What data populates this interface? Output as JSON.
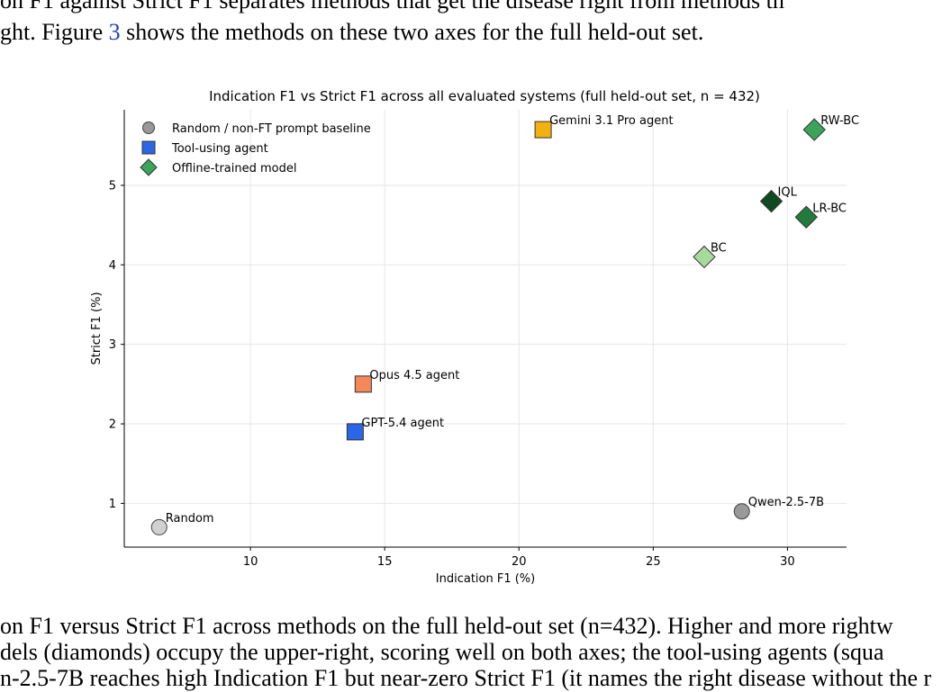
{
  "text_top": {
    "line1": "on F1 against Strict F1 separates methods that get the disease right from methods th",
    "line2_pre": "ght. Figure ",
    "line2_ref": "3",
    "line2_post": " shows the methods on these two axes for the full held-out set."
  },
  "caption": {
    "line1": "on F1 versus Strict F1 across methods on the full held-out set (n=432). Higher and more rightw",
    "line2": "dels (diamonds) occupy the upper-right, scoring well on both axes; the tool-using agents (squa",
    "line3": "n-2.5-7B reaches high Indication F1 but near-zero Strict F1 (it names the right disease without the r"
  },
  "chart_data": {
    "type": "scatter",
    "title": "Indication F1 vs Strict F1 across all evaluated systems (full held-out set, n = 432)",
    "xlabel": "Indication F1 (%)",
    "ylabel": "Strict F1 (%)",
    "xlim": [
      5.3,
      32.2
    ],
    "ylim": [
      0.45,
      5.95
    ],
    "xticks": [
      10,
      15,
      20,
      25,
      30
    ],
    "yticks": [
      1,
      2,
      3,
      4,
      5
    ],
    "grid": true,
    "legend_position": "top-left",
    "legend": [
      {
        "label": "Random / non-FT prompt baseline",
        "marker": "circle",
        "color": "#999999"
      },
      {
        "label": "Tool-using agent",
        "marker": "square",
        "color": "#2b66e6"
      },
      {
        "label": "Offline-trained model",
        "marker": "diamond",
        "color": "#3aa45a"
      }
    ],
    "points": [
      {
        "label": "Random",
        "x": 6.6,
        "y": 0.7,
        "marker": "circle",
        "color": "#d0d0d0"
      },
      {
        "label": "Qwen-2.5-7B",
        "x": 28.3,
        "y": 0.9,
        "marker": "circle",
        "color": "#999999"
      },
      {
        "label": "GPT-5.4 agent",
        "x": 13.9,
        "y": 1.9,
        "marker": "square",
        "color": "#2b66e6"
      },
      {
        "label": "Opus 4.5 agent",
        "x": 14.2,
        "y": 2.5,
        "marker": "square",
        "color": "#f5885a"
      },
      {
        "label": "Gemini 3.1 Pro agent",
        "x": 20.9,
        "y": 5.7,
        "marker": "square",
        "color": "#f2b10f"
      },
      {
        "label": "BC",
        "x": 26.9,
        "y": 4.1,
        "marker": "diamond",
        "color": "#a8d99c"
      },
      {
        "label": "IQL",
        "x": 29.4,
        "y": 4.8,
        "marker": "diamond",
        "color": "#0f4a20"
      },
      {
        "label": "LR-BC",
        "x": 30.7,
        "y": 4.6,
        "marker": "diamond",
        "color": "#237a3d"
      },
      {
        "label": "RW-BC",
        "x": 31.0,
        "y": 5.7,
        "marker": "diamond",
        "color": "#3aa45a"
      }
    ]
  }
}
